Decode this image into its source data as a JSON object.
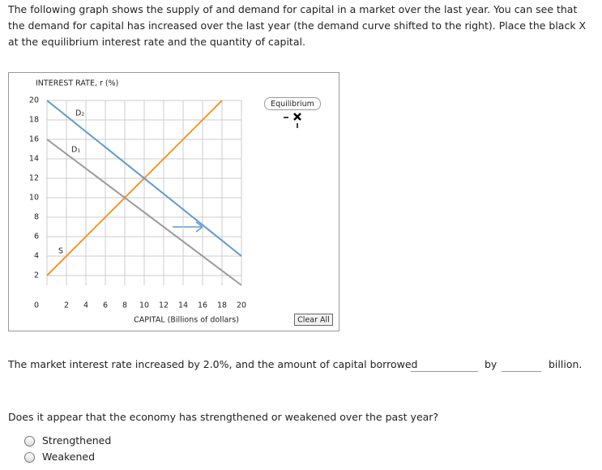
{
  "intro": "The following graph shows the supply of and demand for capital in a market over the last year. You can see that the demand for capital has increased over the last year (the demand curve shifted to the right). Place the black X at the equilibrium interest rate and the quantity of capital.",
  "chart_data": {
    "type": "line",
    "y_label": "INTEREST RATE, r (%)",
    "x_label": "CAPITAL (Billions of dollars)",
    "xlim": [
      0,
      20
    ],
    "ylim": [
      0,
      20
    ],
    "xticks": [
      2,
      4,
      6,
      8,
      10,
      12,
      14,
      16,
      18,
      20
    ],
    "yticks": [
      0,
      2,
      4,
      6,
      8,
      10,
      12,
      14,
      16,
      18,
      20
    ],
    "grid": true,
    "series": [
      {
        "name": "S",
        "color": "#f7942e",
        "x": [
          0,
          18
        ],
        "values": [
          2,
          20
        ]
      },
      {
        "name": "D₁",
        "color": "#9a9a9a",
        "x": [
          0,
          20
        ],
        "values": [
          16,
          1
        ]
      },
      {
        "name": "D₂",
        "color": "#5f9bd0",
        "x": [
          0,
          20
        ],
        "values": [
          20,
          4
        ]
      }
    ]
  },
  "tools": {
    "equilibrium": "Equilibrium",
    "clear": "Clear All"
  },
  "statement": {
    "part1": "The market interest rate increased by 2.0%, and the amount of capital borrowed",
    "part2": "by",
    "part3": "billion."
  },
  "question": {
    "text": "Does it appear that the economy has strengthened or weakened over the past year?",
    "options": [
      "Strengthened",
      "Weakened"
    ]
  }
}
